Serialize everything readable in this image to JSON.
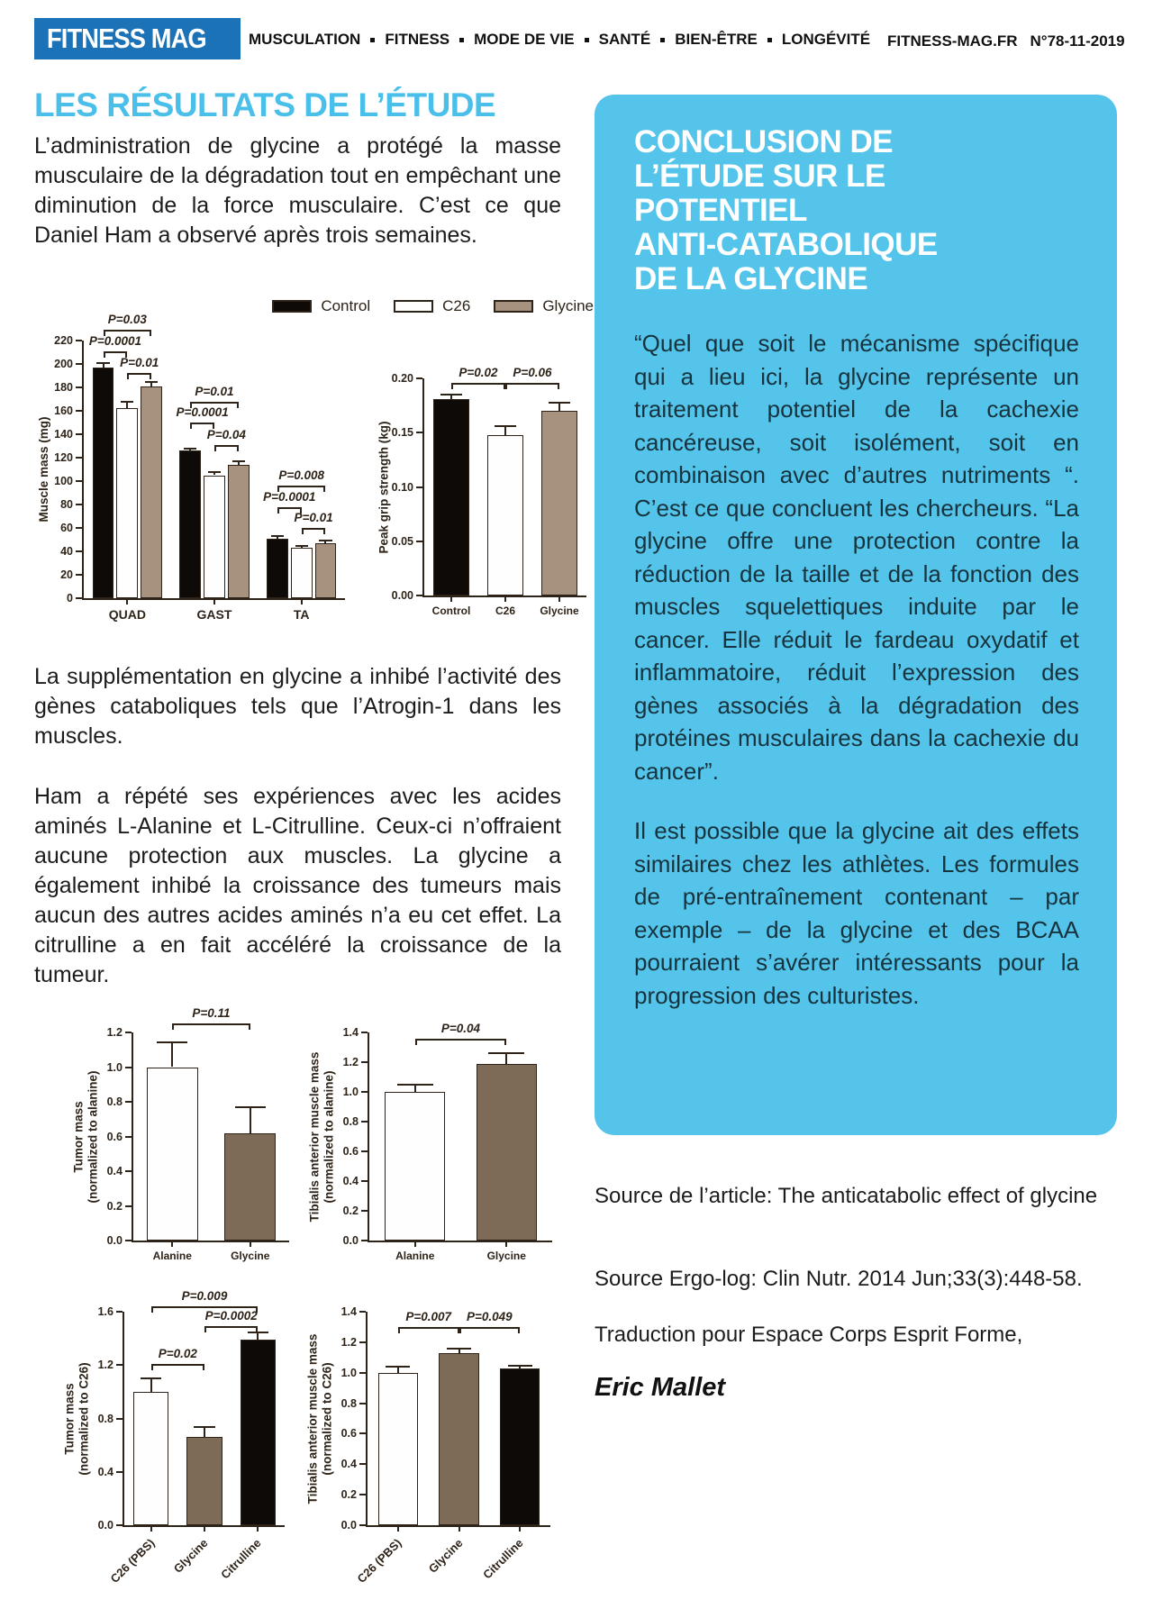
{
  "header": {
    "logo": "FITNESS MAG",
    "nav_items": [
      "MUSCULATION",
      "FITNESS",
      "MODE DE VIE",
      "SANTÉ",
      "BIEN-ÊTRE",
      "LONGÉVITÉ"
    ],
    "site": "FITNESS-MAG.FR",
    "issue": "N°78-11-2019"
  },
  "left_column": {
    "title": "LES RÉSULTATS DE L’ÉTUDE",
    "para1": "L’administration de glycine a protégé la masse musculaire de la dégradation tout en empêchant une diminution de la force musculaire. C’est ce que Daniel Ham a observé après trois semaines.",
    "para2": "La supplémentation en glycine a inhibé l’activité des gènes cataboliques tels que l’Atrogin-1 dans les muscles.",
    "para3": "Ham a répété ses expériences avec les acides aminés L-Alanine et L-Citrulline. Ceux-ci n’offraient aucune protection aux muscles. La glycine a également inhibé la croissance des tumeurs mais aucun des autres acides aminés n’a eu cet effet. La citrulline a en fait accéléré la croissance de la tumeur."
  },
  "conclusion_box": {
    "title_lines": [
      "CONCLUSION DE",
      "L’ÉTUDE SUR LE",
      "POTENTIEL",
      "ANTI-CATABOLIQUE",
      "DE LA GLYCINE"
    ],
    "para1": "“Quel que soit le mécanisme spécifique qui a lieu ici, la glycine représente un traitement potentiel de la cachexie cancéreuse, soit isolément, soit en combinaison avec d’autres nutriments “. C’est ce que concluent les chercheurs. “La glycine offre une protection contre la réduction de la taille et de la fonction des muscles squelettiques induite par le cancer. Elle réduit le fardeau oxydatif et inflammatoire, réduit l’expression des gènes associés à la dégradation des protéines musculaires dans la cachexie du cancer”.",
    "para2": "Il est possible que la glycine ait des effets similaires chez les athlètes. Les formules de pré-entraînement contenant – par exemple – de la glycine et des BCAA pourraient s’avérer intéressants pour la progression des culturistes."
  },
  "sources": {
    "line1": "Source de l’article: The anticatabolic effect of glycine",
    "line2": "Source Ergo-log: Clin Nutr. 2014 Jun;33(3):448-58.",
    "line3": "Traduction pour Espace Corps Esprit Forme,",
    "author": "Eric Mallet"
  },
  "colors": {
    "logo_blue": "#1c72b6",
    "heading_blue": "#4abfe9",
    "box_blue": "#55c4ea",
    "box_text": "#16333e",
    "body_text": "#1c1c1c",
    "chart_ink": "#2e2318",
    "bar_black": "#0d0a07",
    "bar_white": "#fefefe",
    "bar_tan": "#a6927e",
    "bar_brown": "#7d6b58"
  },
  "chart_data": [
    {
      "id": "muscle_mass",
      "type": "bar",
      "title": "",
      "ylabel": "Muscle mass (mg)",
      "xlabel": "",
      "ylim": [
        0,
        220
      ],
      "yticks": [
        0,
        20,
        40,
        60,
        80,
        100,
        120,
        140,
        160,
        180,
        200,
        220
      ],
      "categories": [
        "QUAD",
        "GAST",
        "TA"
      ],
      "series": [
        {
          "name": "Control",
          "color": "#0d0a07",
          "values": [
            197,
            126,
            51
          ],
          "errors": [
            4,
            2,
            2
          ]
        },
        {
          "name": "C26",
          "color": "#fefefe",
          "values": [
            162,
            105,
            43
          ],
          "errors": [
            6,
            3,
            2
          ]
        },
        {
          "name": "Glycine",
          "color": "#a6927e",
          "values": [
            181,
            114,
            47
          ],
          "errors": [
            4,
            3,
            2
          ]
        }
      ],
      "brackets": [
        {
          "label": "P=0.03",
          "from": [
            0,
            0
          ],
          "to": [
            0,
            2
          ],
          "y": 229
        },
        {
          "label": "P=0.0001",
          "from": [
            0,
            0
          ],
          "to": [
            0,
            1
          ],
          "y": 211
        },
        {
          "label": "P=0.01",
          "from": [
            0,
            1
          ],
          "to": [
            0,
            2
          ],
          "y": 192
        },
        {
          "label": "P=0.01",
          "from": [
            1,
            0
          ],
          "to": [
            1,
            2
          ],
          "y": 168
        },
        {
          "label": "P=0.0001",
          "from": [
            1,
            0
          ],
          "to": [
            1,
            1
          ],
          "y": 150
        },
        {
          "label": "P=0.04",
          "from": [
            1,
            1
          ],
          "to": [
            1,
            2
          ],
          "y": 131
        },
        {
          "label": "P=0.008",
          "from": [
            2,
            0
          ],
          "to": [
            2,
            2
          ],
          "y": 96
        },
        {
          "label": "P=0.0001",
          "from": [
            2,
            0
          ],
          "to": [
            2,
            1
          ],
          "y": 78
        },
        {
          "label": "P=0.01",
          "from": [
            2,
            1
          ],
          "to": [
            2,
            2
          ],
          "y": 60
        }
      ],
      "legend_position": "top-right",
      "grid": false
    },
    {
      "id": "grip_strength",
      "type": "bar",
      "title": "",
      "ylabel": "Peak grip strength (kg)",
      "xlabel": "",
      "ylim": [
        0,
        0.2
      ],
      "yticks": [
        0,
        0.05,
        0.1,
        0.15,
        0.2
      ],
      "ytick_labels": [
        "0.00",
        "0.05",
        "0.10",
        "0.15",
        "0.20"
      ],
      "categories": [
        "Control",
        "C26",
        "Glycine"
      ],
      "values": [
        0.181,
        0.148,
        0.17
      ],
      "errors": [
        0.004,
        0.008,
        0.008
      ],
      "colors": [
        "#0d0a07",
        "#fefefe",
        "#a6927e"
      ],
      "brackets": [
        {
          "label": "P=0.02",
          "from": [
            0
          ],
          "to": [
            1
          ],
          "y": 0.196
        },
        {
          "label": "P=0.06",
          "from": [
            1
          ],
          "to": [
            2
          ],
          "y": 0.196
        }
      ],
      "grid": false
    },
    {
      "id": "tumor_mass_alanine",
      "type": "bar",
      "title": "",
      "ylabel": "Tumor mass\n(normalized to alanine)",
      "xlabel": "",
      "ylim": [
        0,
        1.2
      ],
      "yticks": [
        0,
        0.2,
        0.4,
        0.6,
        0.8,
        1.0,
        1.2
      ],
      "ytick_labels": [
        "0.0",
        "0.2",
        "0.4",
        "0.6",
        "0.8",
        "1.0",
        "1.2"
      ],
      "categories": [
        "Alanine",
        "Glycine"
      ],
      "values": [
        1.0,
        0.62
      ],
      "errors": [
        0.145,
        0.15
      ],
      "colors": [
        "#fefefe",
        "#7d6b58"
      ],
      "brackets": [
        {
          "label": "P=0.11",
          "from": [
            0
          ],
          "to": [
            1
          ],
          "y": 1.25
        }
      ],
      "grid": false
    },
    {
      "id": "tibialis_alanine",
      "type": "bar",
      "title": "",
      "ylabel": "Tibialis anterior muscle mass\n(normalized to alanine)",
      "xlabel": "",
      "ylim": [
        0,
        1.4
      ],
      "yticks": [
        0,
        0.2,
        0.4,
        0.6,
        0.8,
        1.0,
        1.2,
        1.4
      ],
      "ytick_labels": [
        "0.0",
        "0.2",
        "0.4",
        "0.6",
        "0.8",
        "1.0",
        "1.2",
        "1.4"
      ],
      "categories": [
        "Alanine",
        "Glycine"
      ],
      "values": [
        1.0,
        1.19
      ],
      "errors": [
        0.05,
        0.07
      ],
      "colors": [
        "#fefefe",
        "#7d6b58"
      ],
      "brackets": [
        {
          "label": "P=0.04",
          "from": [
            0
          ],
          "to": [
            1
          ],
          "y": 1.355
        }
      ],
      "grid": false
    },
    {
      "id": "tumor_mass_c26",
      "type": "bar",
      "title": "",
      "ylabel": "Tumor mass\n(normalized to C26)",
      "xlabel": "",
      "ylim": [
        0,
        1.6
      ],
      "yticks": [
        0,
        0.4,
        0.8,
        1.2,
        1.6
      ],
      "ytick_labels": [
        "0.0",
        "0.4",
        "0.8",
        "1.2",
        "1.6"
      ],
      "categories": [
        "C26 (PBS)",
        "Glycine",
        "Citrulline"
      ],
      "values": [
        1.0,
        0.66,
        1.39
      ],
      "errors": [
        0.1,
        0.075,
        0.055
      ],
      "colors": [
        "#fefefe",
        "#7d6b58",
        "#0d0a07"
      ],
      "rotate_xlabels": true,
      "brackets": [
        {
          "label": "P=0.009",
          "from": [
            0
          ],
          "to": [
            2
          ],
          "y": 1.64
        },
        {
          "label": "P=0.0002",
          "from": [
            1
          ],
          "to": [
            2
          ],
          "y": 1.49
        },
        {
          "label": "P=0.02",
          "from": [
            0
          ],
          "to": [
            1
          ],
          "y": 1.21
        }
      ],
      "grid": false
    },
    {
      "id": "tibialis_c26",
      "type": "bar",
      "title": "",
      "ylabel": "Tibialis anterior muscle mass\n(normalized to C26)",
      "xlabel": "",
      "ylim": [
        0,
        1.4
      ],
      "yticks": [
        0,
        0.2,
        0.4,
        0.6,
        0.8,
        1.0,
        1.2,
        1.4
      ],
      "ytick_labels": [
        "0.0",
        "0.2",
        "0.4",
        "0.6",
        "0.8",
        "1.0",
        "1.2",
        "1.4"
      ],
      "categories": [
        "C26 (PBS)",
        "Glycine",
        "Citrulline"
      ],
      "values": [
        1.0,
        1.13,
        1.03
      ],
      "errors": [
        0.04,
        0.03,
        0.015
      ],
      "colors": [
        "#fefefe",
        "#7d6b58",
        "#0d0a07"
      ],
      "rotate_xlabels": true,
      "brackets": [
        {
          "label": "P=0.007",
          "from": [
            0
          ],
          "to": [
            1
          ],
          "y": 1.3
        },
        {
          "label": "P=0.049",
          "from": [
            1
          ],
          "to": [
            2
          ],
          "y": 1.3
        }
      ],
      "grid": false
    }
  ]
}
